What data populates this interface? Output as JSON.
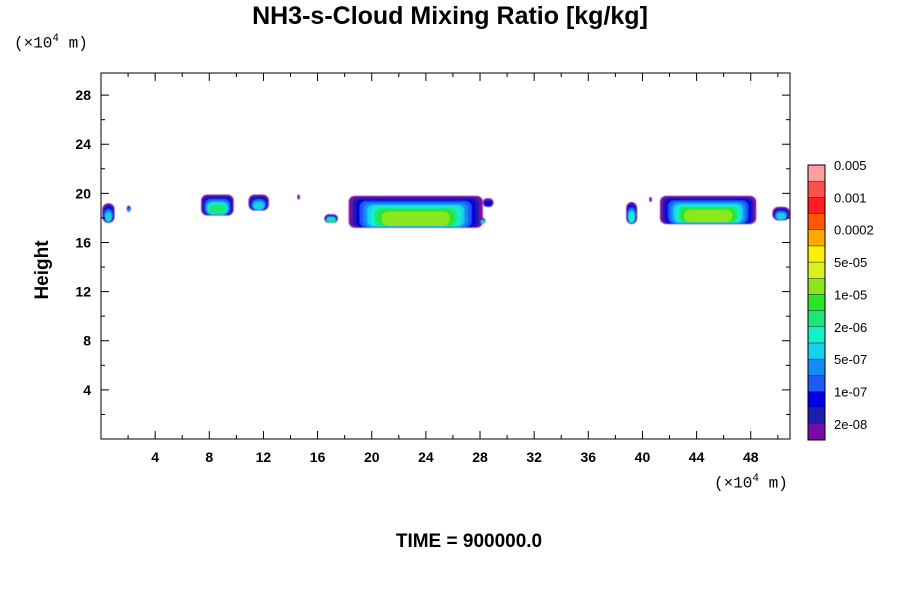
{
  "chart_data": {
    "type": "heatmap",
    "title": "NH3-s-Cloud Mixing Ratio [kg/kg]",
    "ylabel": "Height",
    "x_unit": {
      "prefix": "(×10",
      "exp": "4",
      "suffix": " m)"
    },
    "y_unit": {
      "prefix": "(×10",
      "exp": "4",
      "suffix": " m)"
    },
    "time_label": "TIME = 900000.0",
    "xlim": [
      0,
      50.9
    ],
    "ylim": [
      0,
      29.8
    ],
    "x_ticks": [
      4,
      8,
      12,
      16,
      20,
      24,
      28,
      32,
      36,
      40,
      44,
      48
    ],
    "y_ticks": [
      4,
      8,
      12,
      16,
      20,
      24,
      28
    ],
    "colorbar": {
      "colors": [
        "#7a0aa8",
        "#1e1eaa",
        "#0000e6",
        "#1f5af5",
        "#148cf5",
        "#14d2f0",
        "#14f0c8",
        "#1ee678",
        "#28e628",
        "#8ce61e",
        "#dcf01e",
        "#fff000",
        "#ffaa00",
        "#ff5a00",
        "#ff1e1e",
        "#ff5050",
        "#ffa0a0"
      ],
      "labels": [
        "2e-08",
        "1e-07",
        "5e-07",
        "2e-06",
        "1e-05",
        "5e-05",
        "0.0002",
        "0.001",
        "0.005"
      ]
    },
    "clouds": [
      {
        "x0": 0.1,
        "x1": 1.0,
        "ybot": 17.6,
        "ytop": 19.2,
        "level": 5
      },
      {
        "x0": 1.9,
        "x1": 2.2,
        "ybot": 18.5,
        "ytop": 19.0,
        "level": 4
      },
      {
        "x0": 7.4,
        "x1": 9.8,
        "ybot": 18.2,
        "ytop": 19.9,
        "level": 7
      },
      {
        "x0": 10.9,
        "x1": 12.4,
        "ybot": 18.6,
        "ytop": 19.9,
        "level": 5
      },
      {
        "x0": 14.5,
        "x1": 14.7,
        "ybot": 19.5,
        "ytop": 19.9,
        "level": 0
      },
      {
        "x0": 16.5,
        "x1": 17.5,
        "ybot": 17.6,
        "ytop": 18.3,
        "level": 7
      },
      {
        "x0": 18.3,
        "x1": 28.2,
        "ybot": 17.2,
        "ytop": 19.8,
        "level": 9
      },
      {
        "x0": 28.2,
        "x1": 29.0,
        "ybot": 18.9,
        "ytop": 19.6,
        "level": 2
      },
      {
        "x0": 28.0,
        "x1": 28.4,
        "ybot": 17.5,
        "ytop": 18.0,
        "level": 7
      },
      {
        "x0": 38.8,
        "x1": 39.6,
        "ybot": 17.5,
        "ytop": 19.3,
        "level": 6
      },
      {
        "x0": 40.5,
        "x1": 40.7,
        "ybot": 19.3,
        "ytop": 19.7,
        "level": 0
      },
      {
        "x0": 41.3,
        "x1": 48.4,
        "ybot": 17.5,
        "ytop": 19.8,
        "level": 9
      },
      {
        "x0": 49.6,
        "x1": 50.9,
        "ybot": 17.8,
        "ytop": 18.9,
        "level": 5
      }
    ]
  }
}
